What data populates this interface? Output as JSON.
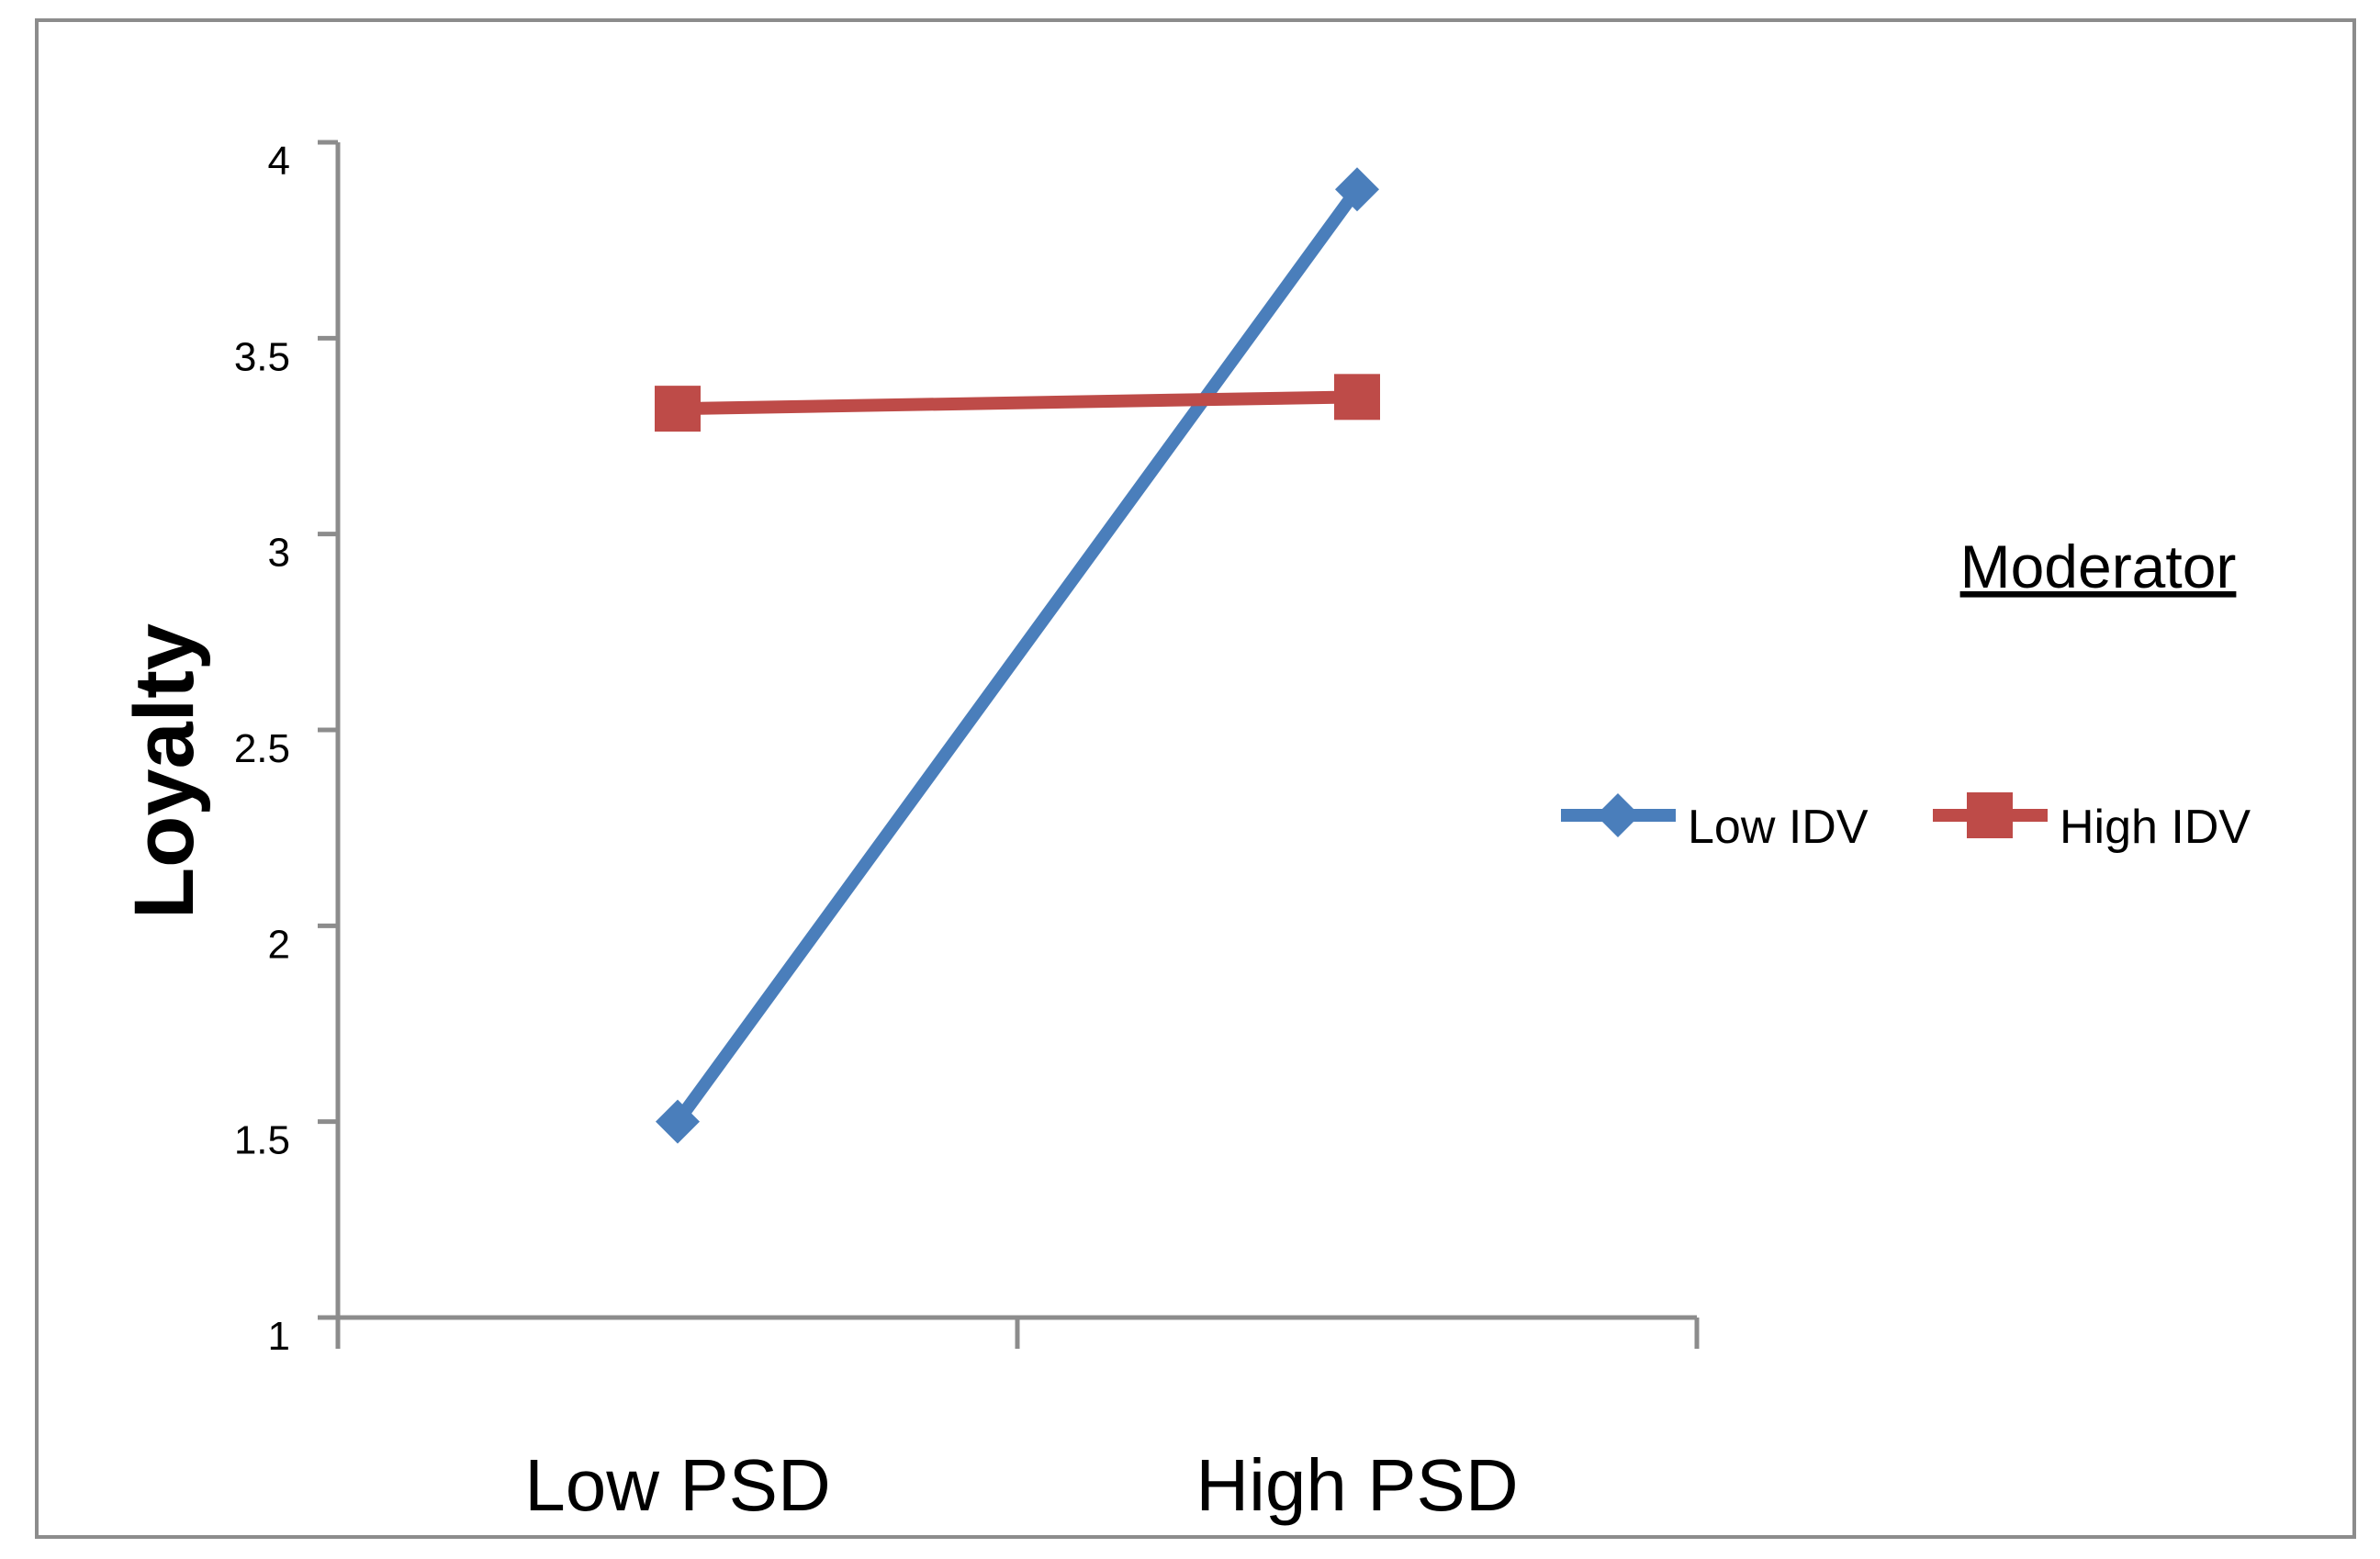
{
  "chart_data": {
    "type": "line",
    "title": "",
    "xlabel": "",
    "ylabel": "Loyalty",
    "categories": [
      "Low PSD",
      "High PSD"
    ],
    "ylim": [
      1,
      4
    ],
    "yticks": [
      "1",
      "1.5",
      "2",
      "2.5",
      "3",
      "3.5",
      "4"
    ],
    "grid": false,
    "legend": {
      "title": "Moderator",
      "placement": "right"
    },
    "series": [
      {
        "name": "Low IDV",
        "values": [
          1.5,
          3.88
        ],
        "color": "#4A7EBB",
        "marker": "diamond"
      },
      {
        "name": "High IDV",
        "values": [
          3.32,
          3.35
        ],
        "color": "#BE4B48",
        "marker": "square"
      }
    ]
  }
}
